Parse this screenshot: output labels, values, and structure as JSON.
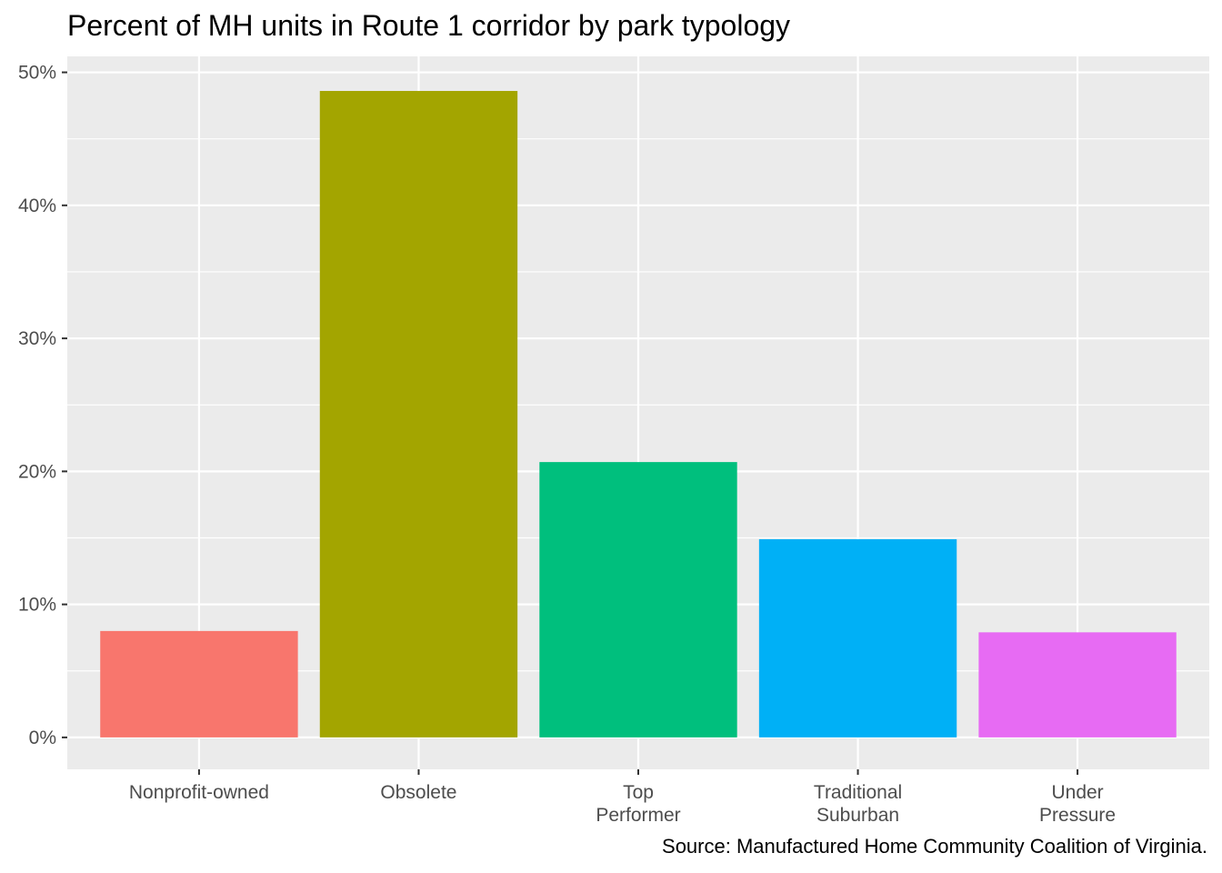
{
  "chart_data": {
    "type": "bar",
    "title": "Percent of MH units in Route 1 corridor by park typology",
    "caption": "Source: Manufactured Home Community Coalition of Virginia.",
    "xlabel": "",
    "ylabel": "",
    "categories": [
      [
        "Nonprofit-owned"
      ],
      [
        "Obsolete"
      ],
      [
        "Top",
        "Performer"
      ],
      [
        "Traditional",
        "Suburban"
      ],
      [
        "Under",
        "Pressure"
      ]
    ],
    "values": [
      8.0,
      48.6,
      20.7,
      14.9,
      7.9
    ],
    "colors": [
      "#F8766D",
      "#A3A500",
      "#00BF7D",
      "#00B0F6",
      "#E76BF3"
    ],
    "ylim": [
      -2.4,
      51.2
    ],
    "y_ticks": [
      0,
      10,
      20,
      30,
      40,
      50
    ],
    "y_tick_labels": [
      "0%",
      "10%",
      "20%",
      "30%",
      "40%",
      "50%"
    ],
    "grid": true,
    "legend": "none",
    "panel_background": "#EBEBEB"
  }
}
